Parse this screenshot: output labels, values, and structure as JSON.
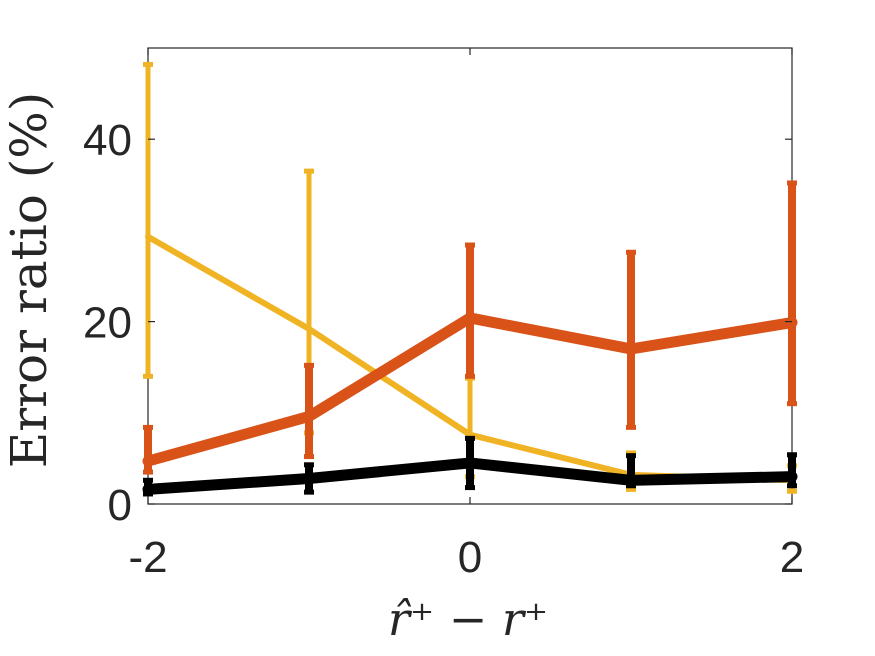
{
  "chart_data": {
    "type": "line",
    "title": "",
    "xlabel": "r̂⁺ − r⁺",
    "ylabel": "Error ratio (%)",
    "xlim": [
      -2,
      2
    ],
    "ylim": [
      0,
      50
    ],
    "xticks": [
      -2,
      0,
      2
    ],
    "xtick_labels": [
      "-2",
      "0",
      "2"
    ],
    "yticks": [
      0,
      20,
      40
    ],
    "ytick_labels": [
      "0",
      "20",
      "40"
    ],
    "grid": false,
    "legend": "none",
    "x": [
      -2,
      -1,
      0,
      1,
      2
    ],
    "series": [
      {
        "color": "#f0b323",
        "line_width": 6,
        "values": [
          29.3,
          19.2,
          7.6,
          3.2,
          2.6
        ],
        "err_low": [
          14.0,
          7.8,
          3.0,
          1.6,
          1.4
        ],
        "err_high": [
          48.2,
          36.5,
          13.8,
          5.6,
          4.2
        ]
      },
      {
        "color": "#d95319",
        "line_width": 11,
        "values": [
          4.7,
          9.6,
          20.4,
          17.0,
          19.9
        ],
        "err_low": [
          3.5,
          5.2,
          14.0,
          8.4,
          11.0
        ],
        "err_high": [
          8.4,
          15.2,
          28.4,
          27.6,
          35.2
        ]
      },
      {
        "color": "#000000",
        "line_width": 11,
        "values": [
          1.6,
          2.8,
          4.5,
          2.6,
          3.0
        ],
        "err_low": [
          1.1,
          1.3,
          1.8,
          2.0,
          2.0
        ],
        "err_high": [
          2.6,
          4.3,
          7.2,
          5.3,
          5.4
        ]
      }
    ]
  }
}
